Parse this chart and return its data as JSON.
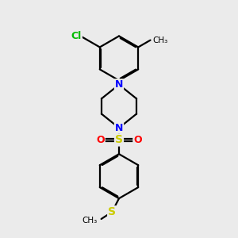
{
  "background_color": "#ebebeb",
  "bond_color": "#000000",
  "N_color": "#0000ff",
  "O_color": "#ff0000",
  "S_color": "#cccc00",
  "Cl_color": "#00bb00",
  "text_color": "#000000",
  "figsize": [
    3.0,
    3.0
  ],
  "dpi": 100,
  "xlim": [
    0,
    10
  ],
  "ylim": [
    0,
    10
  ]
}
